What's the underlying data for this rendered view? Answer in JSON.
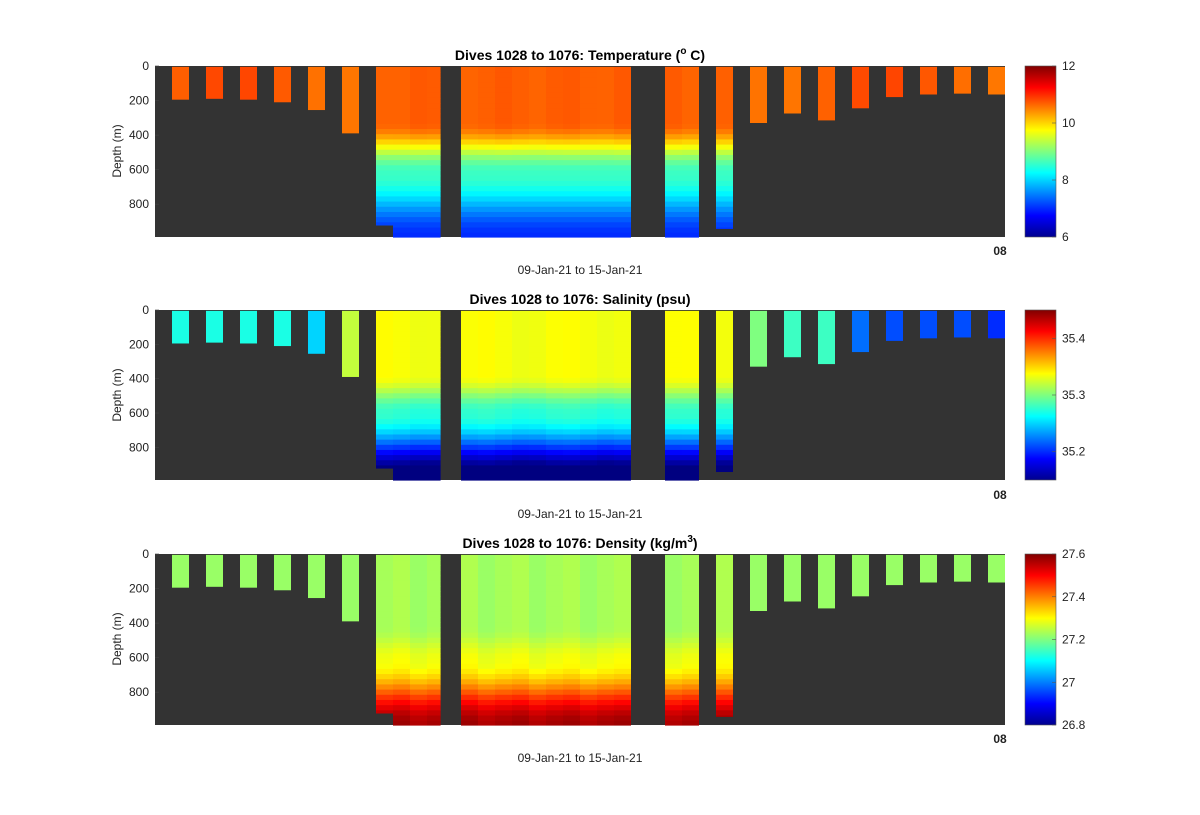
{
  "chart_data": [
    {
      "type": "heatmap",
      "title": "Dives 1028 to 1076: Temperature (",
      "title_sup": "o",
      "title_end": " C)",
      "ylabel": "Depth (m)",
      "xlabel": "09-Jan-21 to 15-Jan-21",
      "x_tick_glyph": "08",
      "y_ticks": [
        "0",
        "200",
        "400",
        "600",
        "800"
      ],
      "y_range": [
        0,
        990
      ],
      "y_reversed": true,
      "colorbar": {
        "ticks": [
          "6",
          "8",
          "10",
          "12"
        ],
        "range": [
          6,
          12
        ],
        "tick_values": [
          6,
          8,
          10,
          12
        ]
      },
      "variable": "temperature",
      "background": "#333333"
    },
    {
      "type": "heatmap",
      "title": "Dives 1028 to 1076: Salinity (psu)",
      "title_sup": "",
      "title_end": "",
      "ylabel": "Depth (m)",
      "xlabel": "09-Jan-21 to 15-Jan-21",
      "x_tick_glyph": "08",
      "y_ticks": [
        "0",
        "200",
        "400",
        "600",
        "800"
      ],
      "y_range": [
        0,
        990
      ],
      "y_reversed": true,
      "colorbar": {
        "ticks": [
          "35.2",
          "35.3",
          "35.4"
        ],
        "range": [
          35.15,
          35.45
        ],
        "tick_values": [
          35.2,
          35.3,
          35.4
        ]
      },
      "variable": "salinity",
      "background": "#333333"
    },
    {
      "type": "heatmap",
      "title": "Dives 1028 to 1076: Density (kg/m",
      "title_sup": "3",
      "title_end": ")",
      "ylabel": "Depth (m)",
      "xlabel": "09-Jan-21 to 15-Jan-21",
      "x_tick_glyph": "08",
      "y_ticks": [
        "0",
        "200",
        "400",
        "600",
        "800"
      ],
      "y_range": [
        0,
        990
      ],
      "y_reversed": true,
      "colorbar": {
        "ticks": [
          "26.8",
          "27",
          "27.2",
          "27.4",
          "27.6"
        ],
        "range": [
          26.8,
          27.6
        ],
        "tick_values": [
          26.8,
          27.0,
          27.2,
          27.4,
          27.6
        ]
      },
      "variable": "density",
      "background": "#333333"
    }
  ],
  "profiles": {
    "x_range": [
      0,
      25
    ],
    "dives": [
      {
        "x0": 0.5,
        "x1": 1.0,
        "max_depth": 195,
        "shallow": true
      },
      {
        "x0": 1.5,
        "x1": 2.0,
        "max_depth": 190,
        "shallow": true
      },
      {
        "x0": 2.5,
        "x1": 3.0,
        "max_depth": 195,
        "shallow": true
      },
      {
        "x0": 3.5,
        "x1": 4.0,
        "max_depth": 210,
        "shallow": true
      },
      {
        "x0": 4.5,
        "x1": 5.0,
        "max_depth": 255,
        "shallow": true
      },
      {
        "x0": 5.5,
        "x1": 6.0,
        "max_depth": 390,
        "shallow": true
      },
      {
        "x0": 6.5,
        "x1": 7.0,
        "max_depth": 920,
        "shallow": false
      },
      {
        "x0": 7.0,
        "x1": 7.5,
        "max_depth": 990,
        "shallow": false
      },
      {
        "x0": 7.5,
        "x1": 8.0,
        "max_depth": 990,
        "shallow": false
      },
      {
        "x0": 8.0,
        "x1": 8.4,
        "max_depth": 990,
        "shallow": false
      },
      {
        "x0": 9.0,
        "x1": 9.5,
        "max_depth": 990,
        "shallow": false
      },
      {
        "x0": 9.5,
        "x1": 10.0,
        "max_depth": 990,
        "shallow": false
      },
      {
        "x0": 10.0,
        "x1": 10.5,
        "max_depth": 990,
        "shallow": false
      },
      {
        "x0": 10.5,
        "x1": 11.0,
        "max_depth": 990,
        "shallow": false
      },
      {
        "x0": 11.0,
        "x1": 11.5,
        "max_depth": 990,
        "shallow": false
      },
      {
        "x0": 11.5,
        "x1": 12.0,
        "max_depth": 990,
        "shallow": false
      },
      {
        "x0": 12.0,
        "x1": 12.5,
        "max_depth": 990,
        "shallow": false
      },
      {
        "x0": 12.5,
        "x1": 13.0,
        "max_depth": 990,
        "shallow": false
      },
      {
        "x0": 13.0,
        "x1": 13.5,
        "max_depth": 990,
        "shallow": false
      },
      {
        "x0": 13.5,
        "x1": 14.0,
        "max_depth": 990,
        "shallow": false
      },
      {
        "x0": 15.0,
        "x1": 15.5,
        "max_depth": 990,
        "shallow": false
      },
      {
        "x0": 15.5,
        "x1": 16.0,
        "max_depth": 990,
        "shallow": false
      },
      {
        "x0": 16.5,
        "x1": 17.0,
        "max_depth": 940,
        "shallow": false
      },
      {
        "x0": 17.5,
        "x1": 18.0,
        "max_depth": 330,
        "shallow": true
      },
      {
        "x0": 18.5,
        "x1": 19.0,
        "max_depth": 275,
        "shallow": true
      },
      {
        "x0": 19.5,
        "x1": 20.0,
        "max_depth": 315,
        "shallow": true
      },
      {
        "x0": 20.5,
        "x1": 21.0,
        "max_depth": 245,
        "shallow": true
      },
      {
        "x0": 21.5,
        "x1": 22.0,
        "max_depth": 180,
        "shallow": true
      },
      {
        "x0": 22.5,
        "x1": 23.0,
        "max_depth": 165,
        "shallow": true
      },
      {
        "x0": 23.5,
        "x1": 24.0,
        "max_depth": 160,
        "shallow": true
      },
      {
        "x0": 24.5,
        "x1": 25.0,
        "max_depth": 165,
        "shallow": true
      }
    ],
    "shallow_values": {
      "temperature": 10.7,
      "salinity": [
        35.27,
        35.27,
        35.27,
        35.27,
        35.25,
        35.32,
        35.3,
        35.28,
        35.28,
        35.22,
        35.21,
        35.21,
        35.21,
        35.2
      ],
      "density": 27.22
    }
  }
}
